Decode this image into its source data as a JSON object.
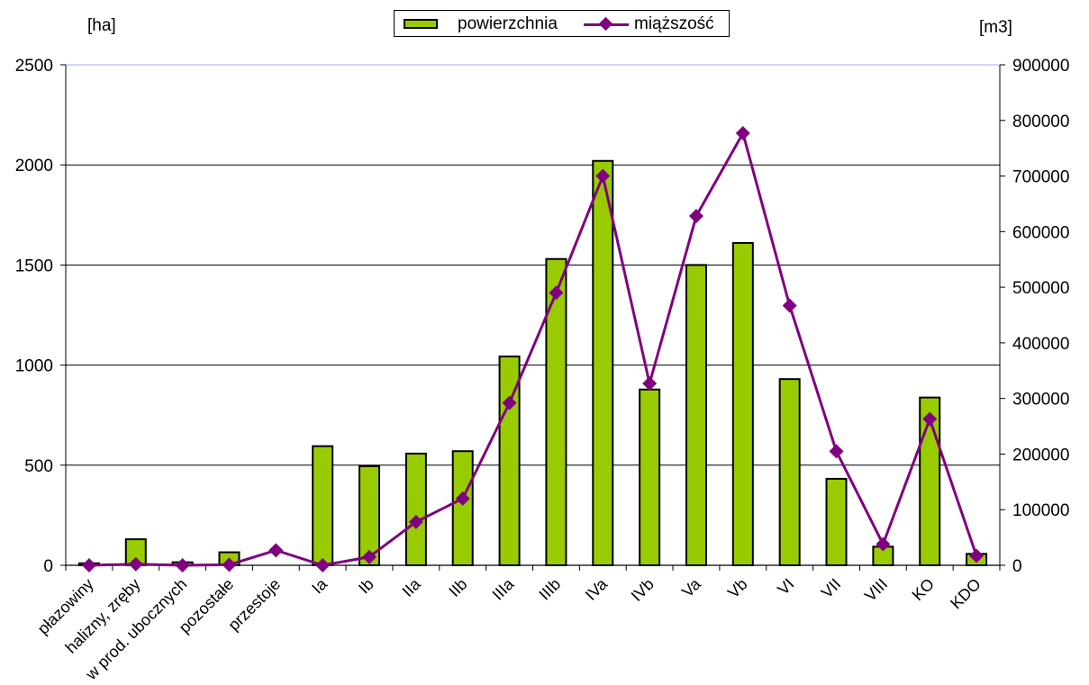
{
  "left_unit": "[ha]",
  "right_unit": "[m3]",
  "legend": {
    "bar_label": "powierzchnia",
    "line_label": "miąższość"
  },
  "colors": {
    "bar": "#99cc00",
    "line": "#800080",
    "grid": "#000000",
    "top_border": "#c0c8f0"
  },
  "chart_data": {
    "type": "bar",
    "categories": [
      "płazowiny",
      "halizny, zręby",
      "w prod. ubocznych",
      "pozostałe",
      "przestoje",
      "Ia",
      "Ib",
      "IIa",
      "IIb",
      "IIIa",
      "IIIb",
      "IVa",
      "IVb",
      "Va",
      "Vb",
      "VI",
      "VII",
      "VIII",
      "KO",
      "KDO"
    ],
    "series": [
      {
        "name": "powierzchnia",
        "type": "bar",
        "axis": "left",
        "values": [
          10,
          130,
          15,
          65,
          0,
          595,
          495,
          558,
          570,
          1043,
          1530,
          2020,
          878,
          1500,
          1610,
          930,
          432,
          93,
          838,
          57
        ]
      },
      {
        "name": "miąższość",
        "type": "line",
        "axis": "right",
        "values": [
          0,
          2000,
          0,
          1000,
          27000,
          0,
          15000,
          78000,
          120000,
          292000,
          490000,
          700000,
          327000,
          628000,
          777000,
          467000,
          205000,
          38000,
          263000,
          17000
        ]
      }
    ],
    "y_left": {
      "min": 0,
      "max": 2500,
      "ticks": [
        0,
        500,
        1000,
        1500,
        2000,
        2500
      ]
    },
    "y_right": {
      "min": 0,
      "max": 900000,
      "ticks": [
        0,
        100000,
        200000,
        300000,
        400000,
        500000,
        600000,
        700000,
        800000,
        900000
      ]
    },
    "grid": true,
    "legend_position": "top-center"
  }
}
